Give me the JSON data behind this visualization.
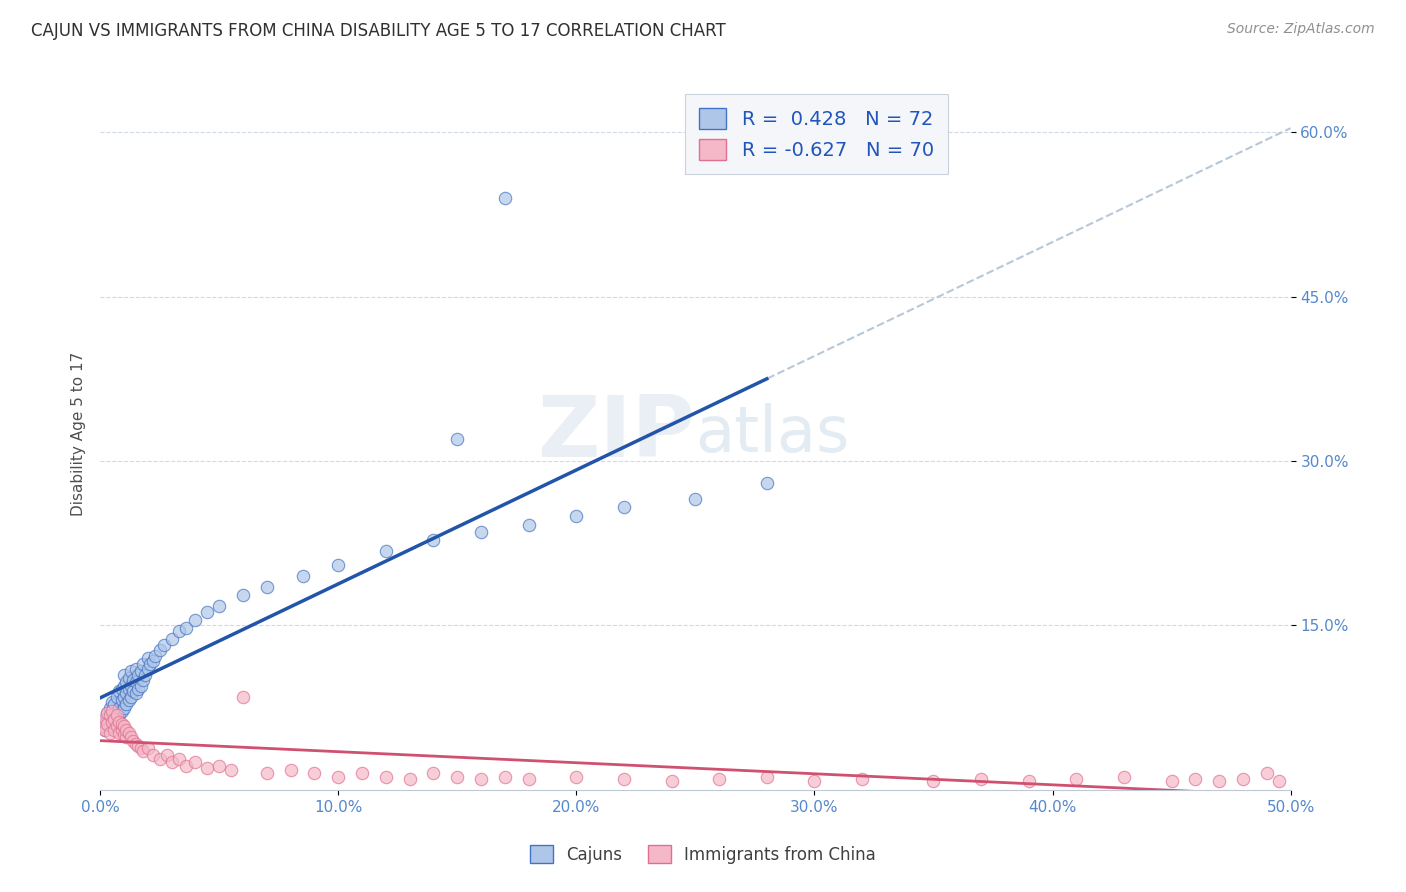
{
  "title": "CAJUN VS IMMIGRANTS FROM CHINA DISABILITY AGE 5 TO 17 CORRELATION CHART",
  "source": "Source: ZipAtlas.com",
  "ylabel": "Disability Age 5 to 17",
  "cajun_R": 0.428,
  "cajun_N": 72,
  "china_R": -0.627,
  "china_N": 70,
  "xlim": [
    0.0,
    0.5
  ],
  "ylim": [
    0.0,
    0.65
  ],
  "xtick_labels": [
    "0.0%",
    "10.0%",
    "20.0%",
    "30.0%",
    "40.0%",
    "50.0%"
  ],
  "xtick_values": [
    0.0,
    0.1,
    0.2,
    0.3,
    0.4,
    0.5
  ],
  "ytick_labels": [
    "15.0%",
    "30.0%",
    "45.0%",
    "60.0%"
  ],
  "ytick_values": [
    0.15,
    0.3,
    0.45,
    0.6
  ],
  "cajun_color": "#aec6e8",
  "cajun_edge_color": "#4472c4",
  "cajun_line_color": "#2255aa",
  "china_color": "#f4b8c8",
  "china_edge_color": "#e07090",
  "china_line_color": "#d05070",
  "trend_dashed_color": "#b8c8d8",
  "background_color": "#ffffff",
  "grid_color": "#d0dae8",
  "legend_cajun_label": "Cajuns",
  "legend_china_label": "Immigrants from China",
  "cajun_scatter_x": [
    0.001,
    0.002,
    0.003,
    0.003,
    0.004,
    0.004,
    0.005,
    0.005,
    0.005,
    0.006,
    0.006,
    0.007,
    0.007,
    0.007,
    0.008,
    0.008,
    0.008,
    0.009,
    0.009,
    0.009,
    0.01,
    0.01,
    0.01,
    0.01,
    0.011,
    0.011,
    0.011,
    0.012,
    0.012,
    0.012,
    0.013,
    0.013,
    0.013,
    0.014,
    0.014,
    0.015,
    0.015,
    0.015,
    0.016,
    0.016,
    0.017,
    0.017,
    0.018,
    0.018,
    0.019,
    0.02,
    0.02,
    0.021,
    0.022,
    0.023,
    0.025,
    0.027,
    0.03,
    0.033,
    0.036,
    0.04,
    0.045,
    0.05,
    0.06,
    0.07,
    0.085,
    0.1,
    0.12,
    0.14,
    0.16,
    0.18,
    0.2,
    0.22,
    0.25,
    0.28,
    0.15,
    0.17
  ],
  "cajun_scatter_y": [
    0.06,
    0.055,
    0.065,
    0.07,
    0.058,
    0.075,
    0.062,
    0.068,
    0.08,
    0.07,
    0.078,
    0.065,
    0.072,
    0.085,
    0.068,
    0.075,
    0.09,
    0.072,
    0.082,
    0.092,
    0.075,
    0.085,
    0.095,
    0.105,
    0.078,
    0.088,
    0.098,
    0.082,
    0.092,
    0.102,
    0.085,
    0.095,
    0.108,
    0.09,
    0.1,
    0.088,
    0.098,
    0.11,
    0.092,
    0.105,
    0.095,
    0.108,
    0.1,
    0.115,
    0.105,
    0.11,
    0.12,
    0.115,
    0.118,
    0.122,
    0.128,
    0.132,
    0.138,
    0.145,
    0.148,
    0.155,
    0.162,
    0.168,
    0.178,
    0.185,
    0.195,
    0.205,
    0.218,
    0.228,
    0.235,
    0.242,
    0.25,
    0.258,
    0.265,
    0.28,
    0.32,
    0.54
  ],
  "china_scatter_x": [
    0.001,
    0.002,
    0.002,
    0.003,
    0.003,
    0.004,
    0.004,
    0.005,
    0.005,
    0.006,
    0.006,
    0.007,
    0.007,
    0.008,
    0.008,
    0.009,
    0.009,
    0.01,
    0.01,
    0.011,
    0.011,
    0.012,
    0.013,
    0.014,
    0.015,
    0.016,
    0.017,
    0.018,
    0.02,
    0.022,
    0.025,
    0.028,
    0.03,
    0.033,
    0.036,
    0.04,
    0.045,
    0.05,
    0.055,
    0.06,
    0.07,
    0.08,
    0.09,
    0.1,
    0.11,
    0.12,
    0.13,
    0.14,
    0.15,
    0.16,
    0.17,
    0.18,
    0.2,
    0.22,
    0.24,
    0.26,
    0.28,
    0.3,
    0.32,
    0.35,
    0.37,
    0.39,
    0.41,
    0.43,
    0.45,
    0.46,
    0.47,
    0.48,
    0.49,
    0.495
  ],
  "china_scatter_y": [
    0.058,
    0.065,
    0.055,
    0.07,
    0.06,
    0.068,
    0.052,
    0.062,
    0.072,
    0.055,
    0.065,
    0.058,
    0.068,
    0.052,
    0.062,
    0.055,
    0.06,
    0.05,
    0.058,
    0.048,
    0.055,
    0.052,
    0.048,
    0.045,
    0.042,
    0.04,
    0.038,
    0.035,
    0.038,
    0.032,
    0.028,
    0.032,
    0.025,
    0.028,
    0.022,
    0.025,
    0.02,
    0.022,
    0.018,
    0.085,
    0.015,
    0.018,
    0.015,
    0.012,
    0.015,
    0.012,
    0.01,
    0.015,
    0.012,
    0.01,
    0.012,
    0.01,
    0.012,
    0.01,
    0.008,
    0.01,
    0.012,
    0.008,
    0.01,
    0.008,
    0.01,
    0.008,
    0.01,
    0.012,
    0.008,
    0.01,
    0.008,
    0.01,
    0.015,
    0.008
  ]
}
